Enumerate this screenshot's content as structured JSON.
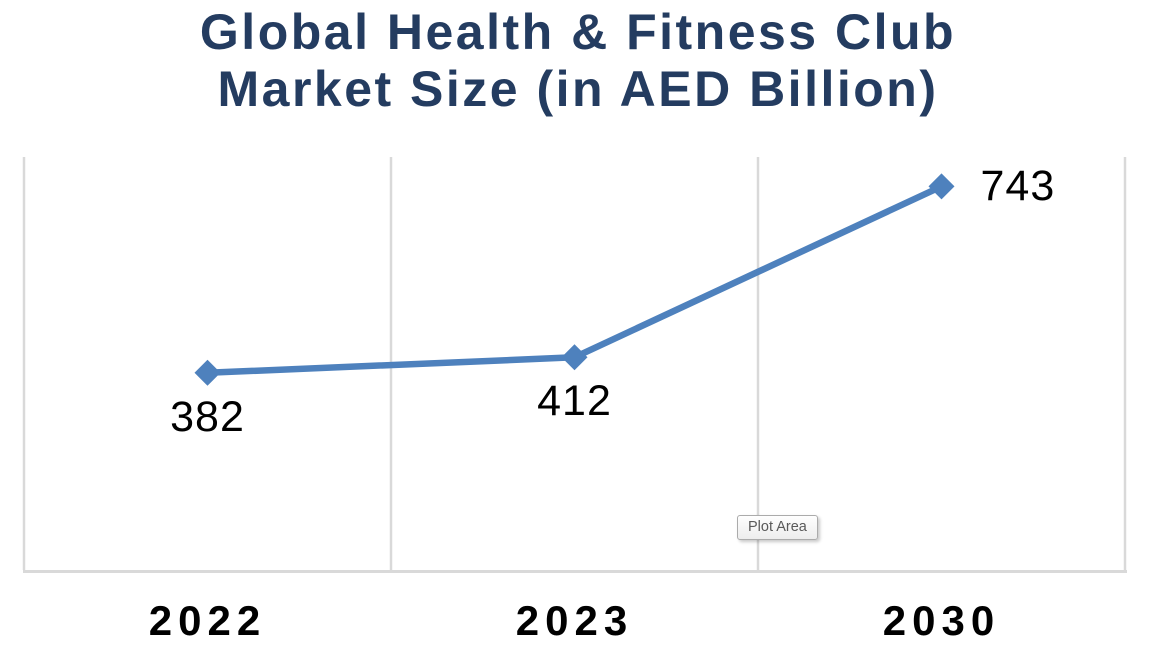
{
  "chart_data": {
    "type": "line",
    "title": "Global Health & Fitness Club Market Size (in AED Billion)",
    "title_lines": [
      "Global Health & Fitness Club",
      "Market Size (in AED Billion)"
    ],
    "categories": [
      "2022",
      "2023",
      "2030"
    ],
    "values": [
      382,
      412,
      743
    ],
    "data_labels": [
      "382",
      "412",
      "743"
    ],
    "data_label_positions": [
      "below",
      "below",
      "right"
    ],
    "xlabel": "",
    "ylabel": "",
    "ylim": [
      0,
      800
    ],
    "legend": "none",
    "gridlines": "vertical major only",
    "marker": "diamond",
    "series_color": "#4E81BD"
  },
  "tooltip": {
    "label": "Plot Area"
  },
  "colors": {
    "title": "#243C60",
    "series": "#4E81BD",
    "gridline": "#D9D9D9",
    "axis_line": "#D9D9D9",
    "data_label": "#000000",
    "axis_label": "#000000",
    "tooltip_text": "#595959",
    "tooltip_border": "#ABABAB"
  }
}
